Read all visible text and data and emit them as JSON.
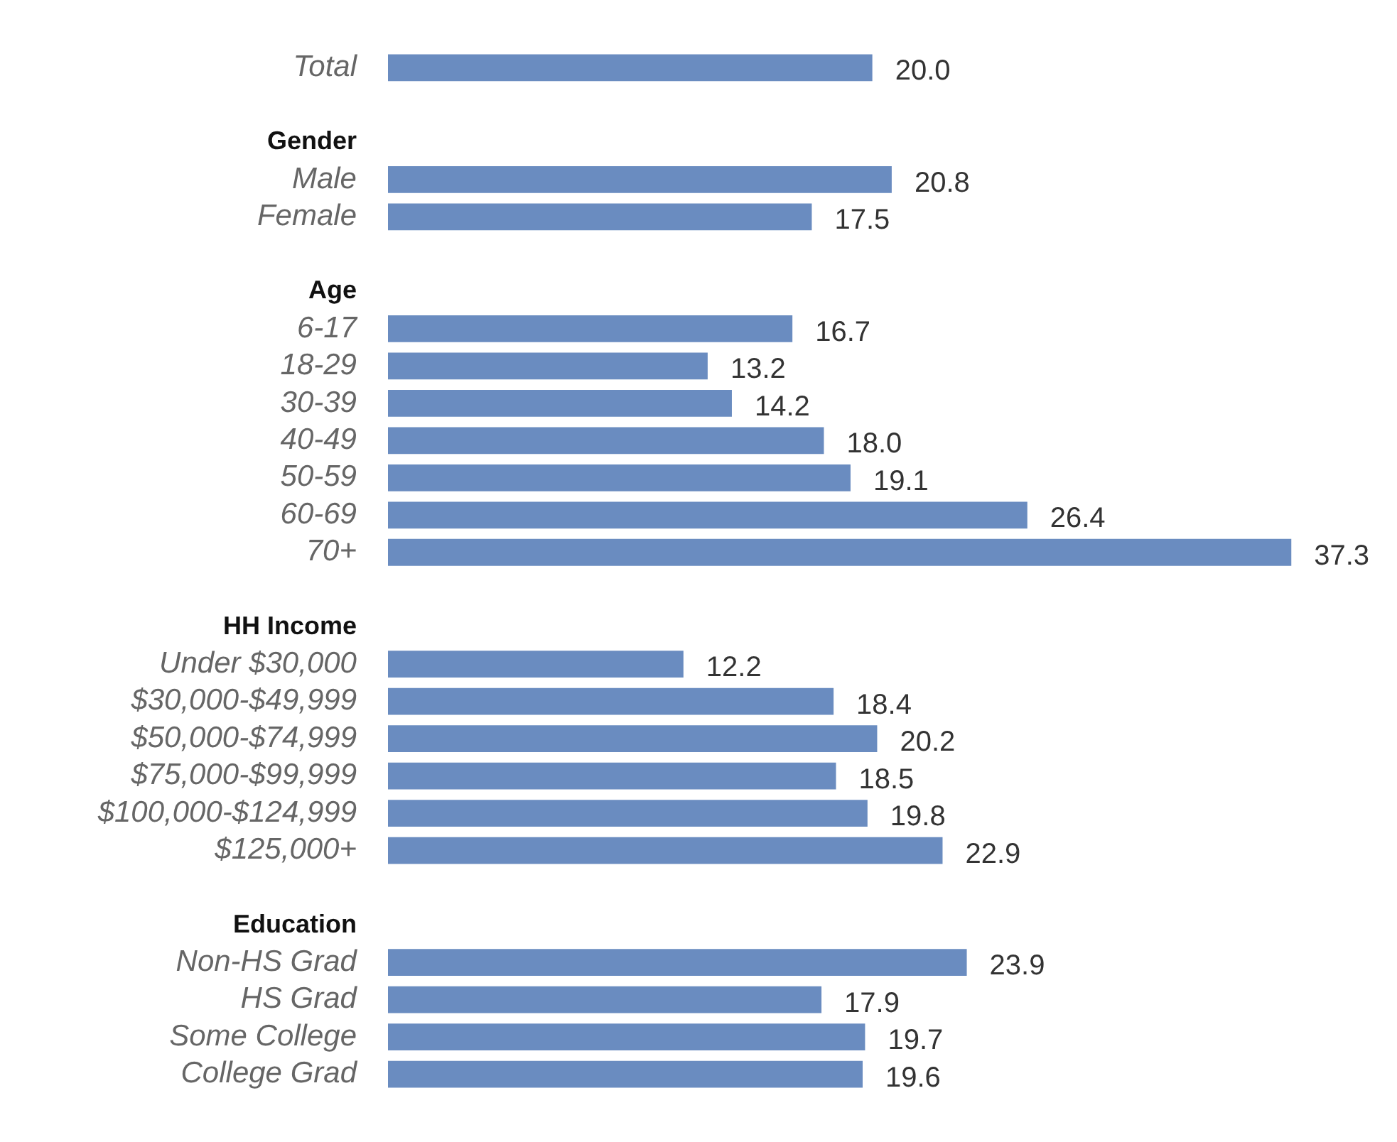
{
  "chart_data": {
    "type": "bar",
    "orientation": "horizontal",
    "color": "#6a8cc0",
    "categories": [
      "Total",
      null,
      "Gender",
      "Male",
      "Female",
      null,
      "Age",
      "6-17",
      "18-29",
      "30-39",
      "40-49",
      "50-59",
      "60-69",
      "70+",
      null,
      "HH Income",
      "Under $30,000",
      "$30,000-$49,999",
      "$50,000-$74,999",
      "$75,000-$99,999",
      "$100,000-$124,999",
      "$125,000+",
      null,
      "Education",
      "Non-HS Grad",
      "HS Grad",
      "Some College",
      "College Grad"
    ],
    "values": [
      20.0,
      null,
      null,
      20.8,
      17.5,
      null,
      null,
      16.7,
      13.2,
      14.2,
      18.0,
      19.1,
      26.4,
      37.3,
      null,
      null,
      12.2,
      18.4,
      20.2,
      18.5,
      19.8,
      22.9,
      null,
      null,
      23.9,
      17.9,
      19.7,
      19.6
    ],
    "value_labels": [
      "20.0",
      null,
      null,
      "20.8",
      "17.5",
      null,
      null,
      "16.7",
      "13.2",
      "14.2",
      "18.0",
      "19.1",
      "26.4",
      "37.3",
      null,
      null,
      "12.2",
      "18.4",
      "20.2",
      "18.5",
      "19.8",
      "22.9",
      null,
      null,
      "23.9",
      "17.9",
      "19.7",
      "19.6"
    ]
  }
}
